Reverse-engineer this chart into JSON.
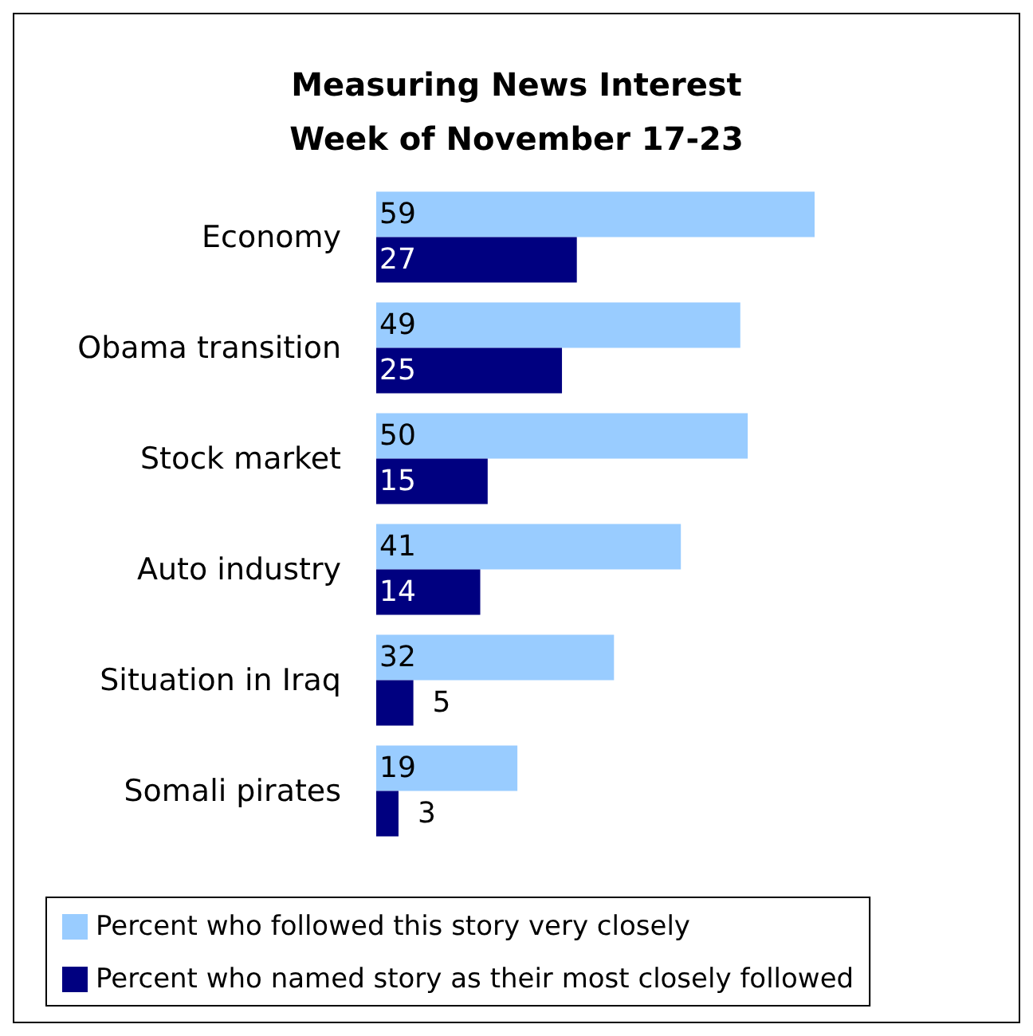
{
  "chart_data": {
    "type": "bar",
    "orientation": "horizontal",
    "title": "Measuring News Interest\nWeek of November 17-23",
    "categories": [
      "Economy",
      "Obama transition",
      "Stock market",
      "Auto industry",
      "Situation in Iraq",
      "Somali pirates"
    ],
    "series": [
      {
        "name": "Percent who followed this story very closely",
        "color": "#99ccff",
        "values": [
          59,
          49,
          50,
          41,
          32,
          19
        ]
      },
      {
        "name": "Percent who named story as their most closely followed",
        "color": "#000080",
        "values": [
          27,
          25,
          15,
          14,
          5,
          3
        ]
      }
    ],
    "data_labels": true,
    "legend": "bottom"
  }
}
